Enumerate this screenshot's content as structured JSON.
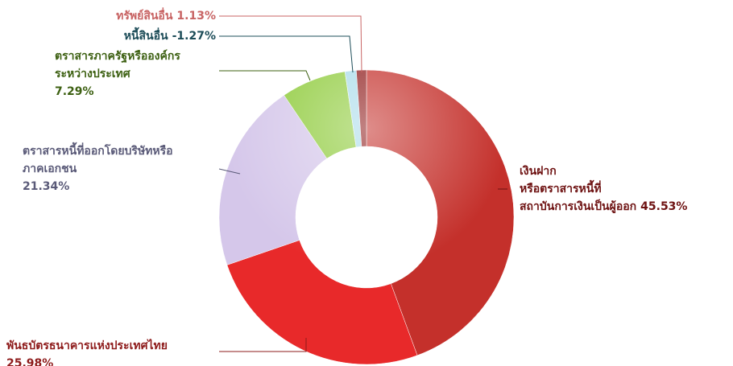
{
  "chart_data": {
    "type": "donut",
    "categories": [
      [
        "เงินฝาก",
        "หรือตราสารหนี้ที่",
        "สถาบันการเงินเป็นผู้ออก"
      ],
      [
        "พันธบัตรธนาคารแห่งประเทศไทย"
      ],
      [
        "ตราสารหนี้ที่ออกโดยบริษัทหรือ",
        "ภาคเอกชน"
      ],
      [
        "ตราสารภาครัฐหรือองค์กร",
        "ระหว่างประเทศ"
      ],
      [
        "หนี้สินอื่น"
      ],
      [
        "ทรัพย์สินอื่น"
      ]
    ],
    "values": [
      45.53,
      25.98,
      21.34,
      7.29,
      -1.27,
      1.13
    ],
    "value_labels": [
      "45.53%",
      "25.98%",
      "21.34%",
      "7.29%",
      "-1.27%",
      "1.13%"
    ],
    "colors": [
      "#c4302b",
      "#e8292a",
      "#d5c7ea",
      "#8fcb3c",
      "#a9dbe9",
      "#8e1b1b"
    ],
    "label_colors": [
      "#6e1212",
      "#8e1b1b",
      "#5a5a78",
      "#3d6012",
      "#1c4c58",
      "#c86464"
    ]
  }
}
